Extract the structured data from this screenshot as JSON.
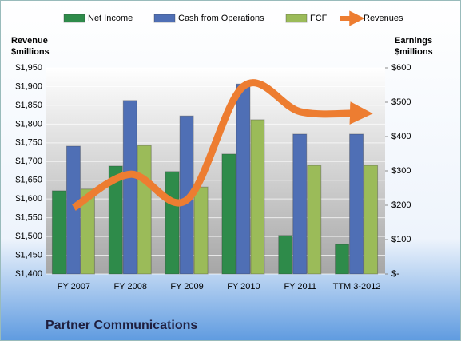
{
  "chart_data": {
    "type": "bar_line_combo",
    "title": "Partner Communications",
    "ylabel": [
      "Revenue",
      "$millions"
    ],
    "y2label": [
      "Earnings",
      "$millions"
    ],
    "categories": [
      "FY 2007",
      "FY 2008",
      "FY 2009",
      "FY 2010",
      "FY 2011",
      "TTM 3-2012"
    ],
    "series": [
      {
        "name": "Net Income",
        "color": "#2e8b4a",
        "axis": "y2",
        "kind": "bar",
        "values": [
          242,
          314,
          298,
          349,
          112,
          86
        ]
      },
      {
        "name": "Cash from Operations",
        "color": "#4f6fb5",
        "axis": "y2",
        "kind": "bar",
        "values": [
          372,
          505,
          460,
          553,
          407,
          407
        ]
      },
      {
        "name": "FCF",
        "color": "#9bbb59",
        "axis": "y2",
        "kind": "bar",
        "values": [
          247,
          374,
          253,
          449,
          316,
          316
        ]
      },
      {
        "name": "Revenues",
        "color": "#ed7d31",
        "axis": "y",
        "kind": "line",
        "values": [
          1577,
          1666,
          1598,
          1901,
          1833,
          1829
        ]
      }
    ],
    "ylim": [
      1400,
      1950
    ],
    "yticks": [
      {
        "value": 1400,
        "label": "$1,400"
      },
      {
        "value": 1450,
        "label": "$1,450"
      },
      {
        "value": 1500,
        "label": "$1,500"
      },
      {
        "value": 1550,
        "label": "$1,550"
      },
      {
        "value": 1600,
        "label": "$1,600"
      },
      {
        "value": 1650,
        "label": "$1,650"
      },
      {
        "value": 1700,
        "label": "$1,700"
      },
      {
        "value": 1750,
        "label": "$1,750"
      },
      {
        "value": 1800,
        "label": "$1,800"
      },
      {
        "value": 1850,
        "label": "$1,850"
      },
      {
        "value": 1900,
        "label": "$1,900"
      },
      {
        "value": 1950,
        "label": "$1,950"
      }
    ],
    "y2lim": [
      0,
      600
    ],
    "y2ticks": [
      {
        "value": 0,
        "label": "$-"
      },
      {
        "value": 100,
        "label": "$100"
      },
      {
        "value": 200,
        "label": "$200"
      },
      {
        "value": 300,
        "label": "$300"
      },
      {
        "value": 400,
        "label": "$400"
      },
      {
        "value": 500,
        "label": "$500"
      },
      {
        "value": 600,
        "label": "$600"
      }
    ],
    "grid": true,
    "legend": "top"
  }
}
